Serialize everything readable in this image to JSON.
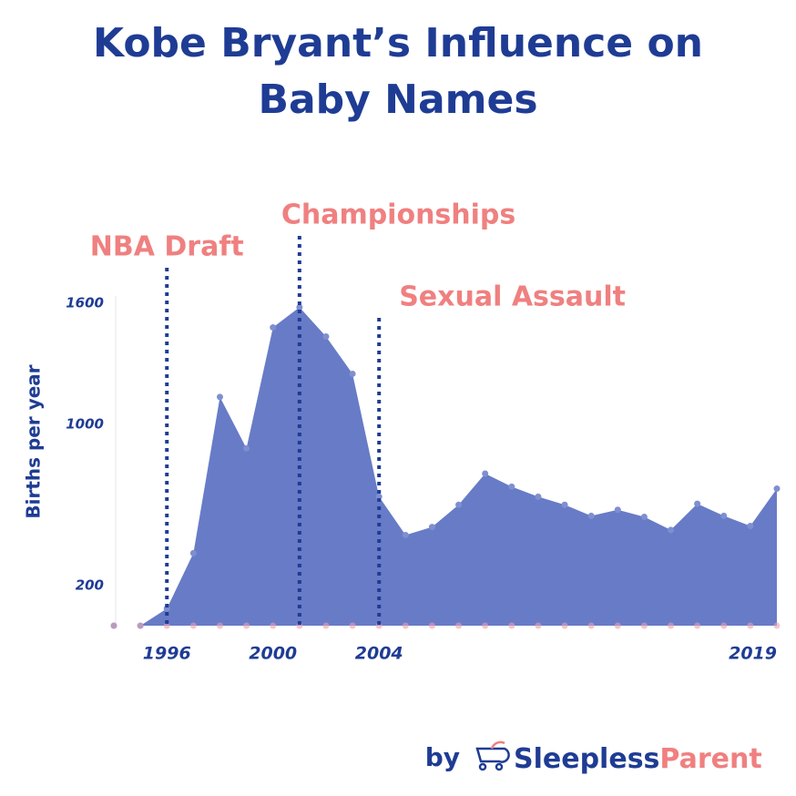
{
  "chart_data": {
    "type": "area",
    "title": [
      "Kobe Bryant’s Influence on",
      "Baby Names"
    ],
    "ylabel": "Births per year",
    "x": [
      1994,
      1995,
      1996,
      1997,
      1998,
      1999,
      2000,
      2001,
      2002,
      2003,
      2004,
      2005,
      2006,
      2007,
      2008,
      2009,
      2010,
      2011,
      2012,
      2013,
      2014,
      2015,
      2016,
      2017,
      2018,
      2019
    ],
    "values": [
      0,
      0,
      85,
      360,
      1135,
      880,
      1480,
      1580,
      1435,
      1250,
      640,
      450,
      490,
      600,
      755,
      690,
      640,
      600,
      545,
      575,
      540,
      475,
      605,
      545,
      495,
      680
    ],
    "color": "#5b70c2",
    "xlim": [
      1994,
      2019
    ],
    "xticks": [
      1996,
      2000,
      2004,
      2019
    ],
    "ylim": [
      0,
      1600
    ],
    "yticks": [
      200,
      1000,
      1600
    ],
    "annotations": [
      {
        "text": "NBA Draft",
        "x": 1996
      },
      {
        "text": "Championships",
        "x": 2001
      },
      {
        "text": "Sexual Assault",
        "x": 2004
      }
    ],
    "credit": {
      "prefix": "by",
      "brand": [
        "Sleepless",
        "Parent"
      ]
    }
  }
}
